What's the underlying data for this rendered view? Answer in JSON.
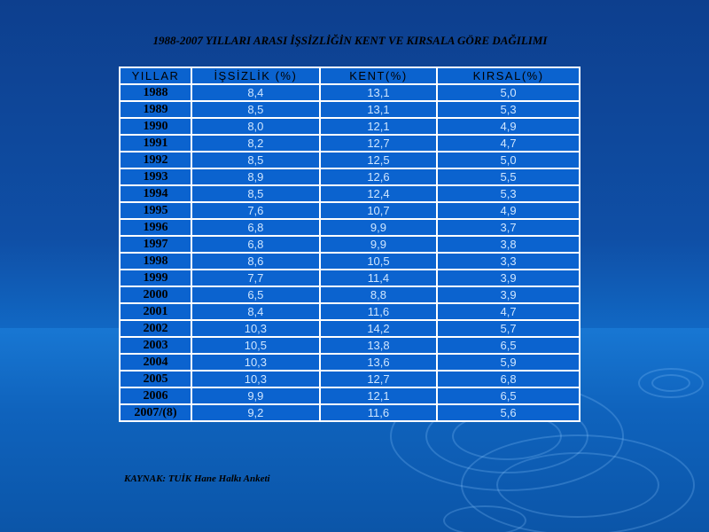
{
  "title": "1988-2007 YILLARI ARASI İŞSİZLİĞİN KENT VE KIRSALA GÖRE DAĞILIMI",
  "table": {
    "headers": [
      "YILLAR",
      "İŞSİZLİK (%)",
      "KENT(%)",
      "KIRSAL(%)"
    ],
    "rows": [
      [
        "1988",
        "8,4",
        "13,1",
        "5,0"
      ],
      [
        "1989",
        "8,5",
        "13,1",
        "5,3"
      ],
      [
        "1990",
        "8,0",
        "12,1",
        "4,9"
      ],
      [
        "1991",
        "8,2",
        "12,7",
        "4,7"
      ],
      [
        "1992",
        "8,5",
        "12,5",
        "5,0"
      ],
      [
        "1993",
        "8,9",
        "12,6",
        "5,5"
      ],
      [
        "1994",
        "8,5",
        "12,4",
        "5,3"
      ],
      [
        "1995",
        "7,6",
        "10,7",
        "4,9"
      ],
      [
        "1996",
        "6,8",
        "9,9",
        "3,7"
      ],
      [
        "1997",
        "6,8",
        "9,9",
        "3,8"
      ],
      [
        "1998",
        "8,6",
        "10,5",
        "3,3"
      ],
      [
        "1999",
        "7,7",
        "11,4",
        "3,9"
      ],
      [
        "2000",
        "6,5",
        "8,8",
        "3,9"
      ],
      [
        "2001",
        "8,4",
        "11,6",
        "4,7"
      ],
      [
        "2002",
        "10,3",
        "14,2",
        "5,7"
      ],
      [
        "2003",
        "10,5",
        "13,8",
        "6,5"
      ],
      [
        "2004",
        "10,3",
        "13,6",
        "5,9"
      ],
      [
        "2005",
        "10,3",
        "12,7",
        "6,8"
      ],
      [
        "2006",
        "9,9",
        "12,1",
        "6,5"
      ],
      [
        "2007/(8)",
        "9,2",
        "11,6",
        "5,6"
      ]
    ]
  },
  "source": "KAYNAK:   TUİK Hane Halkı Anketi"
}
